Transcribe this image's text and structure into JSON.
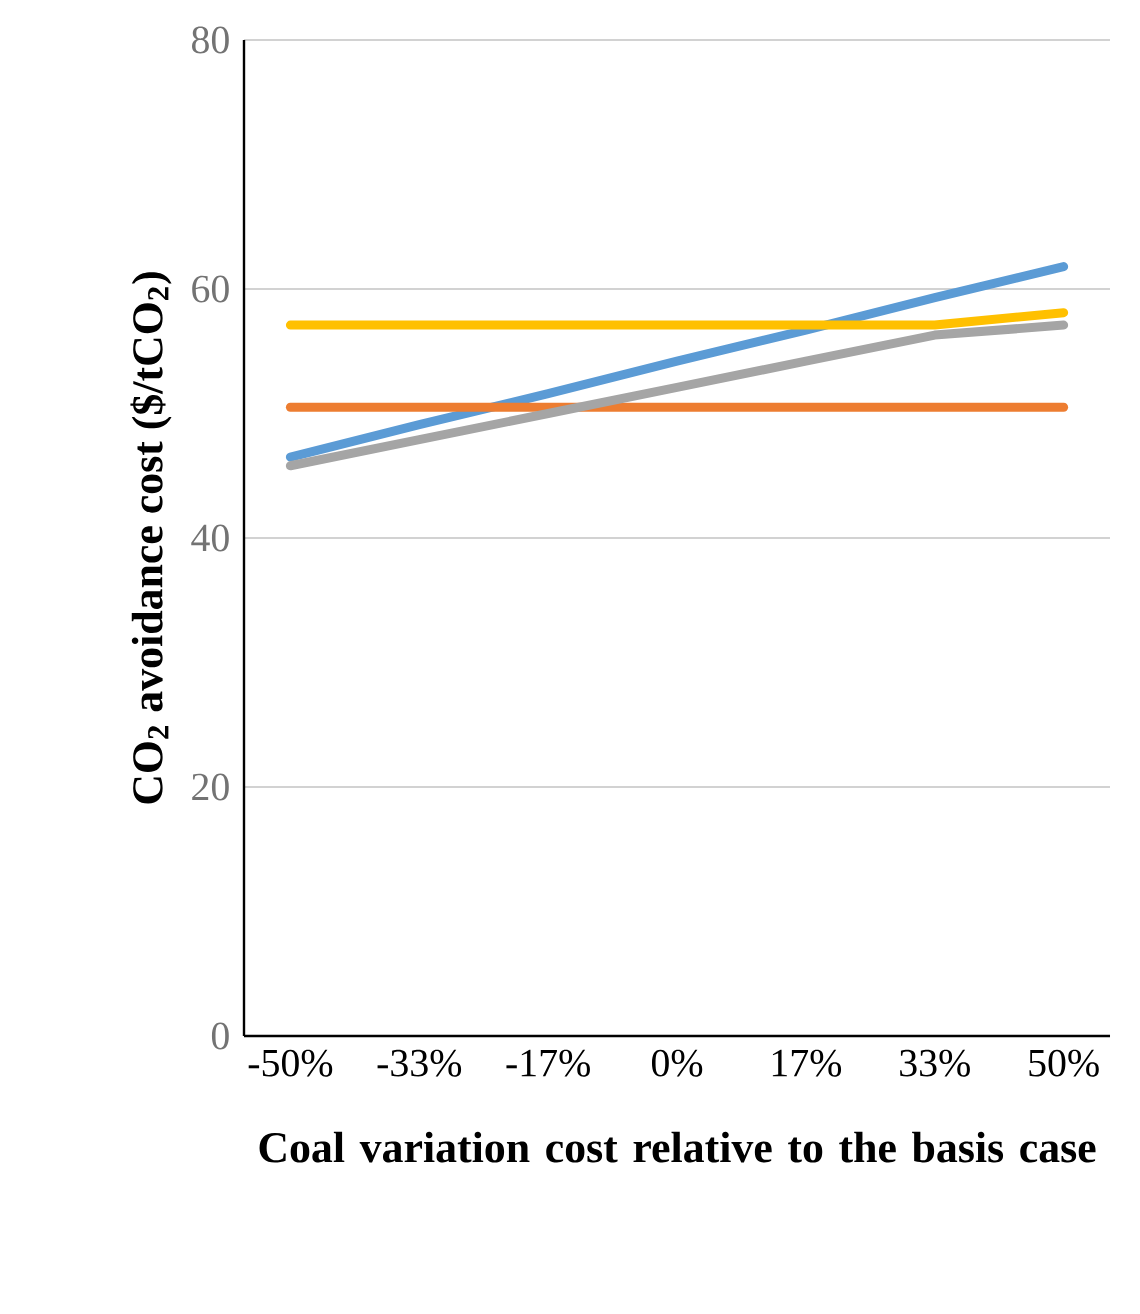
{
  "chart_data": {
    "type": "line",
    "xlabel": "Coal variation cost relative to the basis case",
    "ylabel": "CO$_{2}$ avoidance cost ($/tCO$_{2}$)",
    "categories": [
      "-50%",
      "-33%",
      "-17%",
      "0%",
      "17%",
      "33%",
      "50%"
    ],
    "ylim": [
      0,
      80
    ],
    "yticks": [
      0,
      20,
      40,
      60,
      80
    ],
    "grid": "y",
    "marker": "none",
    "line_style": "solid",
    "series": [
      {
        "color": "#5b9bd5",
        "values": [
          46.5,
          49.1,
          51.6,
          54.2,
          56.7,
          59.3,
          61.8
        ]
      },
      {
        "color": "#ed7d31",
        "values": [
          50.5,
          50.5,
          50.5,
          50.5,
          50.5,
          50.5,
          50.5
        ]
      },
      {
        "color": "#ffc000",
        "values": [
          57.1,
          57.1,
          57.1,
          57.1,
          57.1,
          57.1,
          58.1
        ]
      },
      {
        "color": "#a5a5a5",
        "values": [
          45.8,
          47.9,
          50.0,
          52.1,
          54.2,
          56.3,
          57.1
        ]
      }
    ]
  }
}
